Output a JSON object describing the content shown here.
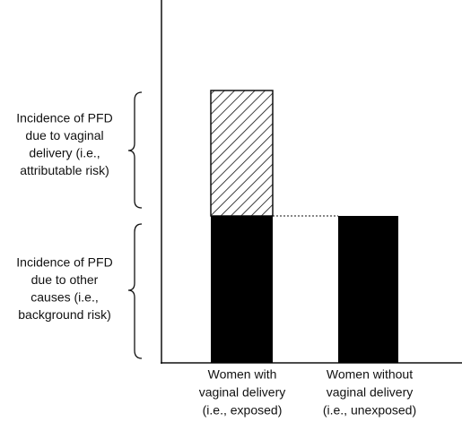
{
  "annotations": [
    {
      "lines": [
        "Incidence of PFD",
        "due to vaginal",
        "delivery (i.e.,",
        "attributable risk)"
      ]
    },
    {
      "lines": [
        "Incidence of PFD",
        "due to other",
        "causes (i.e.,",
        "background risk)"
      ]
    }
  ],
  "groups": [
    {
      "lines": [
        "Women with",
        "vaginal delivery",
        "(i.e., exposed)"
      ]
    },
    {
      "lines": [
        "Women without",
        "vaginal delivery",
        "(i.e., unexposed)"
      ]
    }
  ]
}
